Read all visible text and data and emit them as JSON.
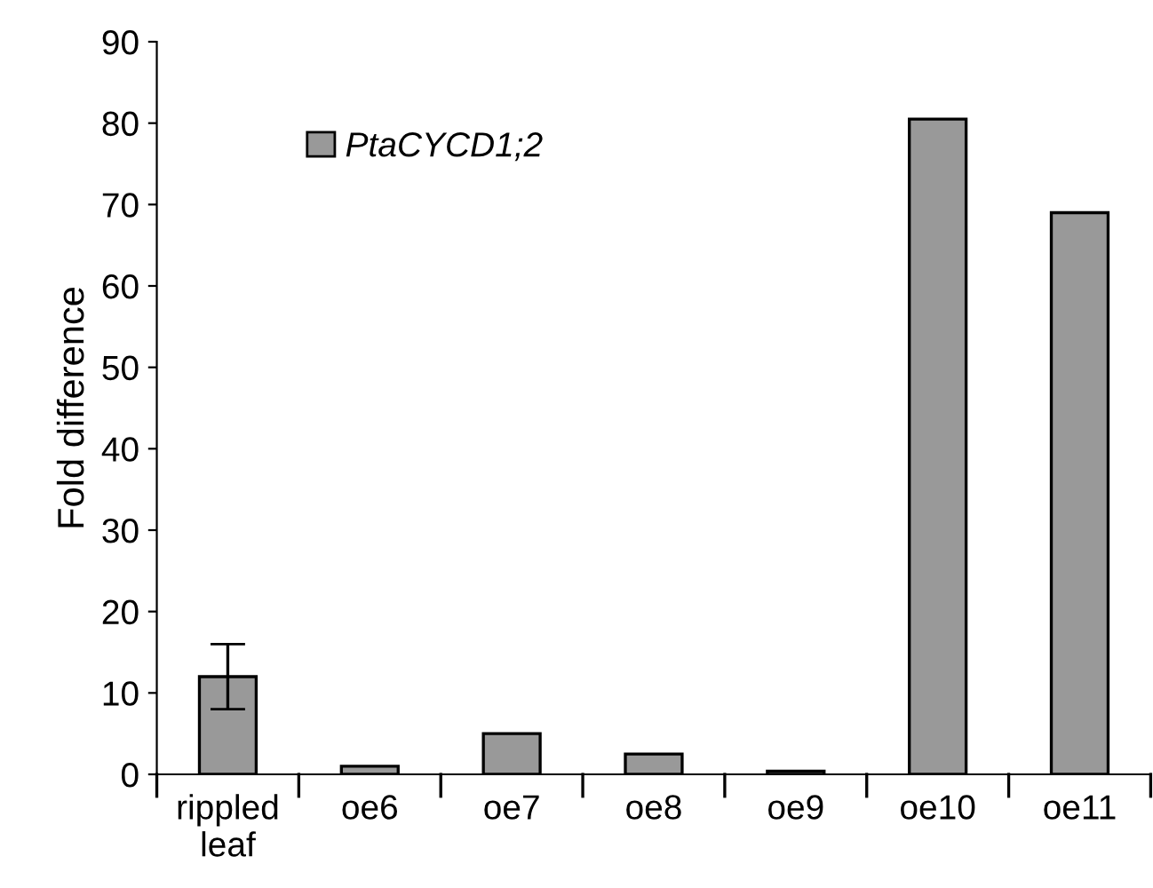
{
  "chart_data": {
    "type": "bar",
    "ylabel": "Fold difference",
    "categories": [
      "rippled\nleaf",
      "oe6",
      "oe7",
      "oe8",
      "oe9",
      "oe10",
      "oe11"
    ],
    "series": [
      {
        "name": "PtaCYCD1;2",
        "color": "#999999",
        "values": [
          12,
          1,
          5,
          2.5,
          0.4,
          80.5,
          69
        ],
        "errors": [
          4,
          null,
          null,
          null,
          null,
          null,
          null
        ]
      }
    ],
    "ylim": [
      0,
      90
    ],
    "yticks": [
      0,
      10,
      20,
      30,
      40,
      50,
      60,
      70,
      80,
      90
    ],
    "grid": false,
    "legend": "top left"
  }
}
